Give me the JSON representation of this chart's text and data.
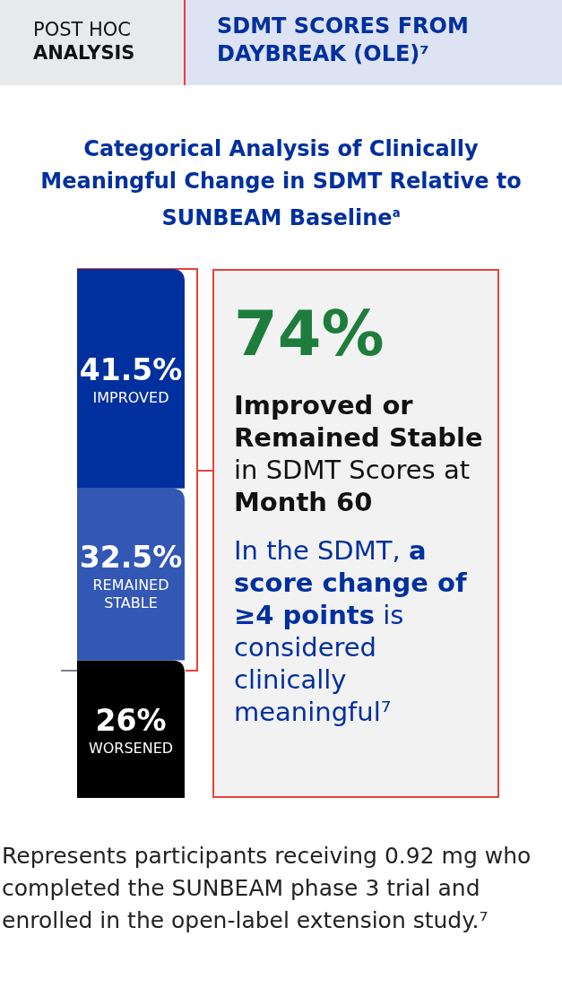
{
  "chart_data": {
    "type": "bar",
    "stacked": true,
    "legend": false,
    "title": "Categorical Analysis of Clinically Meaningful Change in SDMT Relative to SUNBEAM Baseline$^{a}$",
    "categories": [
      null
    ],
    "series": [
      {
        "name": "WORSENED",
        "color": "#000000",
        "values": [
          26
        ],
        "value_labels": [
          "26%"
        ]
      },
      {
        "name": "REMAINED STABLE",
        "color": "#3357b5",
        "values": [
          32.5
        ],
        "value_labels": [
          "32.5%"
        ]
      },
      {
        "name": "IMPROVED",
        "color": "#00309e",
        "values": [
          41.5
        ],
        "value_labels": [
          "41.5%"
        ]
      }
    ],
    "annotations": [
      "POST HOC ANALYSIS",
      "SDMT SCORES FROM DAYBREAK (OLE)⁷",
      "74%",
      "Improved or Remained Stable",
      "in SDMT Scores at",
      "Month 60",
      "In the SDMT,",
      "a score change of ≥4 points",
      "is considered clinically meaningful⁷",
      "Represents participants receiving 0.92 mg who completed the SUNBEAM phase 3 trial and enrolled in the open-label extension study.⁷"
    ]
  }
}
